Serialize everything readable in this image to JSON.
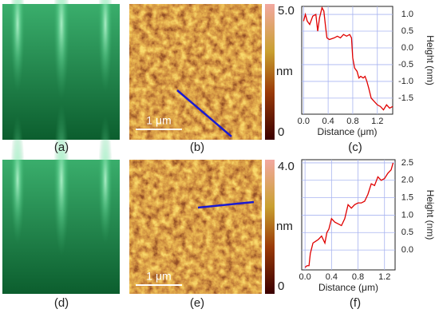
{
  "panels": [
    {
      "label": "(a)"
    },
    {
      "label": "(b)",
      "scale_bar": "1 μm",
      "colorbar_unit": "nm",
      "colorbar_lim": [
        0,
        5
      ],
      "colorbar_ticks": [
        {
          "value": 5,
          "label": "5.0"
        },
        0
      ]
    },
    {
      "label": "(d)"
    },
    {
      "label": "(e)",
      "scale_bar": "1 μm",
      "colorbar_unit": "nm",
      "colorbar_lim": [
        0,
        4
      ],
      "colorbar_ticks": [
        {
          "value": 4,
          "label": "4.0"
        },
        0
      ]
    }
  ],
  "chart_data": [
    {
      "type": "line",
      "label": "(c)",
      "x_label": "Distance (μm)",
      "y_label": "Height (nm)",
      "color": "#e00000",
      "grid": true,
      "x": [
        0,
        0.03,
        0.06,
        0.1,
        0.15,
        0.2,
        0.23,
        0.26,
        0.3,
        0.33,
        0.36,
        0.38,
        0.42,
        0.5,
        0.55,
        0.6,
        0.65,
        0.7,
        0.75,
        0.78,
        0.8,
        0.83,
        0.87,
        0.9,
        0.93,
        0.97,
        1.0,
        1.03,
        1.06,
        1.1,
        1.15,
        1.2,
        1.25,
        1.3,
        1.35,
        1.4,
        1.45
      ],
      "values": [
        0.8,
        1.0,
        0.8,
        0.7,
        0.95,
        1.0,
        0.5,
        0.9,
        1.2,
        1.1,
        0.6,
        0.3,
        0.25,
        0.3,
        0.35,
        0.3,
        0.4,
        0.35,
        0.4,
        0.3,
        -0.3,
        -0.6,
        -0.7,
        -0.9,
        -0.85,
        -0.9,
        -0.85,
        -1.0,
        -1.2,
        -1.5,
        -1.6,
        -1.7,
        -1.75,
        -1.85,
        -1.7,
        -1.8,
        -1.75
      ],
      "xlim": [
        -0.03,
        1.45
      ],
      "ylim": [
        -1.98,
        1.24
      ],
      "xticks": [
        {
          "value": 0,
          "label": "0.0"
        },
        0.4,
        0.8,
        1.2
      ],
      "yticks": [
        {
          "value": 1,
          "label": "1.0"
        },
        0.5,
        {
          "value": 0,
          "label": "0.0"
        },
        -0.5,
        {
          "value": -1,
          "label": "-1.0"
        },
        -1.5
      ]
    },
    {
      "type": "line",
      "label": "(f)",
      "x_label": "Distance (μm)",
      "y_label": "Height (nm)",
      "color": "#e00000",
      "grid": true,
      "x": [
        0,
        0.03,
        0.06,
        0.08,
        0.12,
        0.16,
        0.2,
        0.25,
        0.3,
        0.33,
        0.36,
        0.4,
        0.45,
        0.5,
        0.55,
        0.6,
        0.65,
        0.7,
        0.75,
        0.8,
        0.85,
        0.9,
        0.95,
        1.0,
        1.05,
        1.1,
        1.15,
        1.2,
        1.25,
        1.3,
        1.33
      ],
      "values": [
        -0.5,
        -0.45,
        -0.45,
        -0.1,
        0.2,
        0.25,
        0.3,
        0.4,
        0.2,
        0.5,
        0.6,
        0.9,
        0.8,
        0.75,
        0.7,
        0.9,
        1.3,
        1.2,
        1.3,
        1.35,
        1.35,
        1.4,
        1.6,
        1.9,
        1.85,
        2.1,
        2.0,
        2.05,
        2.2,
        2.3,
        2.5
      ],
      "xlim": [
        -0.05,
        1.36
      ],
      "ylim": [
        -0.57,
        2.59
      ],
      "xticks": [
        {
          "value": 0,
          "label": "0.0"
        },
        0.4,
        0.8,
        1.2
      ],
      "yticks": [
        2.5,
        {
          "value": 2,
          "label": "2.0"
        },
        1.5,
        {
          "value": 1,
          "label": "1.0"
        },
        0.5,
        {
          "value": 0,
          "label": "0.0"
        }
      ]
    }
  ]
}
